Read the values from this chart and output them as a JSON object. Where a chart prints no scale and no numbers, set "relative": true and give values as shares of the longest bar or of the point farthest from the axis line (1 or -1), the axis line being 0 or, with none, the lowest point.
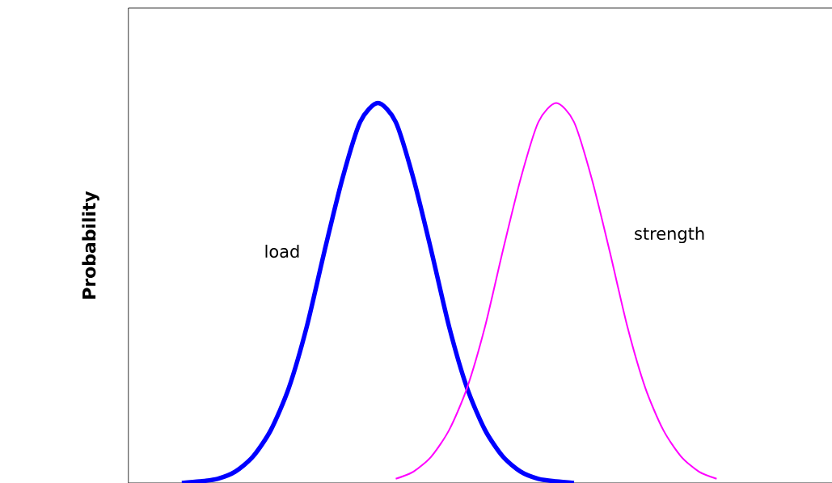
{
  "chart_data": {
    "type": "line",
    "relative": true,
    "ylabel": "Probability",
    "marker": "none",
    "line_style": "solid",
    "categories": [
      null,
      null,
      null,
      null,
      null,
      null,
      null,
      null,
      null,
      null,
      null,
      null,
      null,
      null,
      null,
      null,
      null,
      null,
      null,
      null,
      null,
      null,
      null,
      null,
      null,
      null,
      null,
      null,
      null,
      null,
      null,
      null,
      null,
      null,
      null,
      null,
      null,
      null,
      null,
      null,
      null,
      null,
      null
    ],
    "series": [
      {
        "name": "load",
        "color": "#0000ff",
        "values": [
          null,
          null,
          null,
          0,
          0.004,
          0.011,
          0.03,
          0.07,
          0.14,
          0.25,
          0.41,
          0.61,
          0.8,
          0.95,
          1,
          0.95,
          0.8,
          0.61,
          0.41,
          0.25,
          0.14,
          0.07,
          0.03,
          0.011,
          0.004,
          0,
          null,
          null,
          null,
          null,
          null,
          null,
          null,
          null,
          null,
          null,
          null,
          null,
          null,
          null,
          null,
          null,
          null
        ]
      },
      {
        "name": "strength",
        "color": "#ff00ff",
        "values": [
          null,
          null,
          null,
          null,
          null,
          null,
          null,
          null,
          null,
          null,
          null,
          null,
          null,
          null,
          null,
          0.011,
          0.03,
          0.07,
          0.14,
          0.25,
          0.41,
          0.61,
          0.8,
          0.95,
          1,
          0.95,
          0.8,
          0.61,
          0.41,
          0.25,
          0.14,
          0.07,
          0.03,
          0.011,
          null,
          null,
          null,
          null,
          null,
          null,
          null,
          null,
          null
        ]
      }
    ]
  }
}
